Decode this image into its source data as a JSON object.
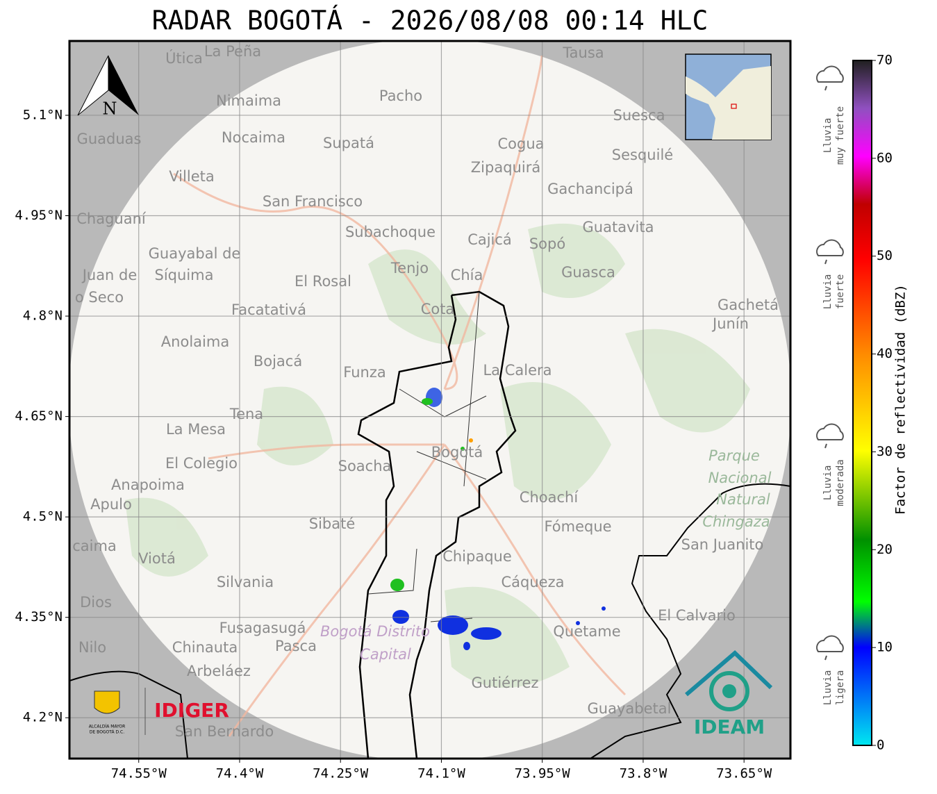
{
  "title": "RADAR BOGOTÁ - 2026/08/08 00:14 HLC",
  "map": {
    "xlim": [
      -74.653,
      -73.581
    ],
    "ylim": [
      4.139,
      5.211
    ],
    "xticks": [
      {
        "value": -74.55,
        "label": "74.55°W"
      },
      {
        "value": -74.4,
        "label": "74.4°W"
      },
      {
        "value": -74.25,
        "label": "74.25°W"
      },
      {
        "value": -74.1,
        "label": "74.1°W"
      },
      {
        "value": -73.95,
        "label": "73.95°W"
      },
      {
        "value": -73.8,
        "label": "73.8°W"
      },
      {
        "value": -73.65,
        "label": "73.65°W"
      }
    ],
    "yticks": [
      {
        "value": 5.1,
        "label": "5.1°N"
      },
      {
        "value": 4.95,
        "label": "4.95°N"
      },
      {
        "value": 4.8,
        "label": "4.8°N"
      },
      {
        "value": 4.65,
        "label": "4.65°N"
      },
      {
        "value": 4.5,
        "label": "4.5°N"
      },
      {
        "value": 4.35,
        "label": "4.35°N"
      },
      {
        "value": 4.2,
        "label": "4.2°N"
      }
    ],
    "grid": true,
    "north": "N",
    "places": [
      "Útica",
      "La Peña",
      "Tausa",
      "Pacho",
      "Nimaima",
      "Suesca",
      "Guaduas",
      "Nocaima",
      "Supatá",
      "Cogua",
      "Sesquilé",
      "Villeta",
      "Zipaquirá",
      "Gachancipá",
      "San Francisco",
      "Chaguaní",
      "Guatavita",
      "Subachoque",
      "Cajicá",
      "Sopó",
      "Guayabal de",
      "Síquima",
      "Tenjo",
      "Chía",
      "Guasca",
      "Juan de",
      "o Seco",
      "El Rosal",
      "Facatativá",
      "Cota",
      "Gachetá",
      "Junín",
      "Anolaima",
      "Bojacá",
      "Funza",
      "La Calera",
      "Tena",
      "La Mesa",
      "Bogotá",
      "El Colegio",
      "Soacha",
      "Anapoima",
      "Apulo",
      "Choachí",
      "Fómeque",
      "Sibaté",
      "San Juanito",
      "caima",
      "Viotá",
      "Chipaque",
      "Silvania",
      "Cáqueza",
      "Dios",
      "El Calvario",
      "Fusagasugá",
      "Quetame",
      "Nilo",
      "Chinauta",
      "Pasca",
      "Arbeláez",
      "Gutiérrez",
      "Guayabetal",
      "San Bernardo"
    ],
    "park": [
      "Parque",
      "Nacional",
      "Natural",
      "Chingaza"
    ],
    "district": [
      "Bogotá Distrito",
      "Capital"
    ]
  },
  "colorbar": {
    "label": "Factor de reflectividad (dBZ)",
    "lim": [
      0,
      70
    ],
    "ticks": [
      0,
      10,
      20,
      30,
      40,
      50,
      60,
      70
    ]
  },
  "rain_legend": [
    [
      "Lluvia",
      "muy fuerte"
    ],
    [
      "Lluvia",
      "fuerte"
    ],
    [
      "Lluvia",
      "moderada"
    ],
    [
      "Lluvia",
      "ligera"
    ]
  ],
  "logos": {
    "alcaldia": [
      "ALCALDÍA MAYOR",
      "DE BOGOTÁ D.C."
    ],
    "idiger": "IDIGER",
    "ideam": "IDEAM"
  }
}
